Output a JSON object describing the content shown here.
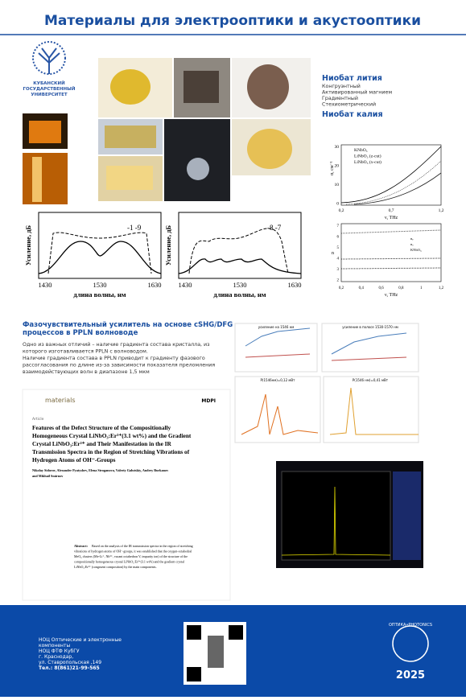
{
  "header": {
    "title": "Материалы для электрооптики и акустооптики"
  },
  "university": {
    "lines": [
      "КУБАНСКИЙ",
      "ГОСУДАРСТВЕННЫЙ",
      "УНИВЕРСИТЕТ"
    ]
  },
  "materials": [
    {
      "title": "Ниобат лития",
      "items": [
        "Конгруэнтный",
        "Активированный магнием",
        "Градиентный",
        "Стехиометрический"
      ]
    },
    {
      "title": "Ниобат калия",
      "items": []
    }
  ],
  "spectra": [
    {
      "annotation": "-1 -9",
      "ylabel": "Усиление, дБ",
      "xlabel": "длина волны, нм",
      "xticks": [
        "1430",
        "1530",
        "1630"
      ]
    },
    {
      "annotation": "-8 -7",
      "ylabel": "Усиление, дБ",
      "xlabel": "длина волны, нм",
      "xticks": [
        "1430",
        "1530",
        "1630"
      ]
    }
  ],
  "absorption": {
    "ylabel": "α, см⁻¹",
    "xlabel": "ν, THz",
    "xticks": [
      "0,2",
      "0,7",
      "1,2"
    ],
    "yticks": [
      "30",
      "20",
      "10",
      "0"
    ],
    "legend": [
      "KNbO₃",
      "LiNbO₃ (z-cut)",
      "LiNbO₃ (x-cut)"
    ]
  },
  "refraction": {
    "ylabel": "n",
    "xlabel": "ν, THz",
    "xticks": [
      "0,2",
      "0,4",
      "0,6",
      "0,8",
      "1",
      "1,2"
    ],
    "yticks": [
      "7",
      "6",
      "5",
      "4",
      "3",
      "2"
    ],
    "legend": [
      "nₑ",
      "nₒ",
      "KNbO₃"
    ]
  },
  "amplifier": {
    "title": [
      "Фазочувствительный усилитель на основе cSHG/DFG",
      "процессов в PPLN волноводе"
    ],
    "text": [
      "Одно из важных отличий – наличие градиента состава кристалла, из",
      "которого изготавливается PPLN с волноводом.",
      "Наличие градиента состава в PPLN приводит к градиенту фазового",
      "рассогласования по длине из-за зависимости показателя преломления",
      "взаимодействующих волн в диапазоне 1,5 мкм"
    ]
  },
  "small_charts": [
    "усиление на 1546 нм",
    "усиление в полосе 1530-1570 нм",
    "P(1546нм)=0,12 мВт",
    "P(1546 нм)=0,41 мВт"
  ],
  "paper": {
    "journal": "materials",
    "publisher": "MDPI",
    "kind": "Article",
    "title": [
      "Features of the Defect Structure of the Compositionally",
      "Homogeneous Crystal LiNbO₃:Er³⁺(3.1 wt%) and the Gradient",
      "Crystal LiNbO₃:Er³⁺ and Their Manifestation in the IR",
      "Transmission Spectra in the Region of Stretching Vibrations of",
      "Hydrogen Atoms of OH⁻-Groups"
    ],
    "authors": [
      "Nikolay Sidorov, Alexander Pyatyshev, Elena Stroganova, Valeriy Galutskiy, Andrey Burkanov",
      "and Mikhail Smirnov"
    ],
    "abstract_label": "Abstract:",
    "abstract": [
      "Based on the analysis of the IR transmission spectra in the region of stretching",
      "vibrations of hydrogen atoms of OH⁻-groups, it was established that the oxygen-octahedral",
      "MeO₆ clusters (Me-Li⁺, Nb⁵⁺, vacant octahedron V, impurity ion) of the structure of the",
      "compositionally homogeneous crystal LiNbO₃:Er³⁺(3.1 wt%) and the gradient crystal",
      "LiNbO₃:Er³⁺ (congruent composition) by the main components."
    ]
  },
  "footer": {
    "lines": [
      "НОЦ Оптические и электронные",
      "компоненты",
      "НОЦ ФТФ КубГУ",
      "г. Краснодар,",
      "ул. Ставропольская ,149",
      "Тел.: 8(861)21-99-565"
    ],
    "logo": "ОПТИКА•PHOTONICS",
    "year": "2025"
  }
}
